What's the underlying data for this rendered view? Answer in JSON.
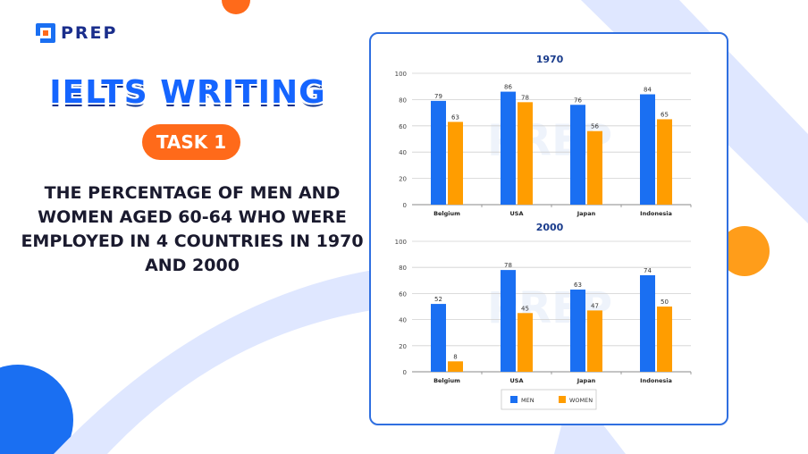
{
  "brand": {
    "name": "PREP",
    "watermark": "PREP"
  },
  "headline": "IELTS WRITING",
  "badge": "TASK 1",
  "topic": "THE PERCENTAGE OF MEN AND WOMEN AGED 60-64 WHO WERE EMPLOYED IN 4 COUNTRIES IN 1970 AND 2000",
  "colors": {
    "men": "#1a6ff2",
    "women": "#ff9d00",
    "accent_orange": "#ff6a1a",
    "frame": "#2f6fe0"
  },
  "chart_data": [
    {
      "type": "bar",
      "title": "1970",
      "categories": [
        "Belgium",
        "USA",
        "Japan",
        "Indonesia"
      ],
      "series": [
        {
          "name": "MEN",
          "values": [
            79,
            86,
            76,
            84
          ]
        },
        {
          "name": "WOMEN",
          "values": [
            63,
            78,
            56,
            65
          ]
        }
      ],
      "ylim": [
        0,
        100
      ],
      "yticks": [
        0,
        20,
        40,
        60,
        80,
        100
      ],
      "grid": true
    },
    {
      "type": "bar",
      "title": "2000",
      "categories": [
        "Belgium",
        "USA",
        "Japan",
        "Indonesia"
      ],
      "series": [
        {
          "name": "MEN",
          "values": [
            52,
            78,
            63,
            74
          ]
        },
        {
          "name": "WOMEN",
          "values": [
            8,
            45,
            47,
            50
          ]
        }
      ],
      "ylim": [
        0,
        100
      ],
      "yticks": [
        0,
        20,
        40,
        60,
        80,
        100
      ],
      "grid": true,
      "legend": "bottom"
    }
  ]
}
